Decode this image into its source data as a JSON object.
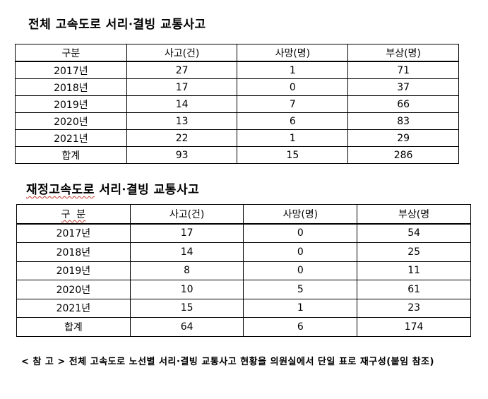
{
  "table1": {
    "title_prefix": "전체 고속도로 서리·결빙 교통사고",
    "headers": [
      "구분",
      "사고(건)",
      "사망(명)",
      "부상(명)"
    ],
    "rows": [
      [
        "2017년",
        "27",
        "1",
        "71"
      ],
      [
        "2018년",
        "17",
        "0",
        "37"
      ],
      [
        "2019년",
        "14",
        "7",
        "66"
      ],
      [
        "2020년",
        "13",
        "6",
        "83"
      ],
      [
        "2021년",
        "22",
        "1",
        "29"
      ],
      [
        "합계",
        "93",
        "15",
        "286"
      ]
    ]
  },
  "table2": {
    "title_wavy": "재정고속도로",
    "title_rest": " 서리·결빙 교통사고",
    "headers": [
      "구  분",
      "사고(건)",
      "사망(명)",
      "부상(명"
    ],
    "rows": [
      [
        "2017년",
        "17",
        "0",
        "54"
      ],
      [
        "2018년",
        "14",
        "0",
        "25"
      ],
      [
        "2019년",
        "8",
        "0",
        "11"
      ],
      [
        "2020년",
        "10",
        "5",
        "61"
      ],
      [
        "2021년",
        "15",
        "1",
        "23"
      ],
      [
        "합계",
        "64",
        "6",
        "174"
      ]
    ]
  },
  "note": "< 참 고 > 전체 고속도로 노선별 서리·결빙 교통사고 현황을 의원실에서 단일 표로 재구성(붙임 참조)"
}
